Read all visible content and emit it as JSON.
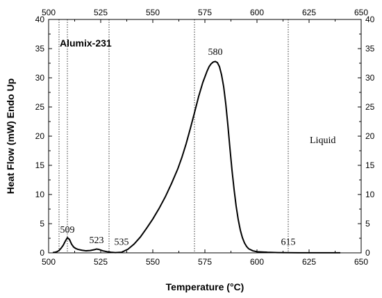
{
  "chart_data": {
    "type": "line",
    "title": "",
    "xlabel": "Temperature (°C)",
    "ylabel": "Heat Flow (mW) Endo Up",
    "xlim": [
      500,
      650
    ],
    "ylim": [
      0,
      40
    ],
    "x_ticks": [
      500,
      525,
      550,
      575,
      600,
      625,
      650
    ],
    "y_ticks": [
      0,
      5,
      10,
      15,
      20,
      25,
      30,
      35,
      40
    ],
    "grid": false,
    "legend": "none",
    "top_axis_mirrors_x": true,
    "right_axis_mirrors_y": true,
    "sample_label": "Alumix-231",
    "phase_label": "Liquid",
    "reference_lines_x": [
      505,
      509,
      529,
      570,
      615
    ],
    "annotations": [
      {
        "text": "509",
        "x": 509,
        "y": 2.5
      },
      {
        "text": "523",
        "x": 523,
        "y": 0.7
      },
      {
        "text": "535",
        "x": 535,
        "y": 0.4
      },
      {
        "text": "580",
        "x": 580,
        "y": 33
      },
      {
        "text": "615",
        "x": 615,
        "y": 0.4
      }
    ],
    "series": [
      {
        "x": [
          502,
          503,
          504,
          505,
          506,
          507,
          508,
          509,
          510,
          511,
          512,
          513,
          514,
          516,
          518,
          520,
          522,
          523,
          524,
          526,
          528,
          530,
          532,
          535,
          538,
          541,
          544,
          547,
          550,
          553,
          556,
          559,
          562,
          564,
          566,
          568,
          570,
          572,
          574,
          576,
          577,
          578,
          579,
          580,
          581,
          582,
          583,
          584,
          585,
          586,
          587,
          588,
          589,
          590,
          591,
          592,
          593,
          594,
          595,
          596,
          598,
          600,
          605,
          610,
          615,
          620,
          625,
          630,
          635,
          640
        ],
        "y": [
          0.05,
          0.1,
          0.2,
          0.4,
          0.8,
          1.3,
          2.0,
          2.6,
          2.3,
          1.5,
          1.0,
          0.75,
          0.6,
          0.45,
          0.35,
          0.4,
          0.55,
          0.65,
          0.6,
          0.35,
          0.2,
          0.1,
          0.05,
          0.1,
          0.6,
          1.5,
          2.7,
          4.2,
          5.8,
          7.6,
          9.6,
          11.9,
          14.4,
          16.4,
          18.7,
          21.3,
          24.0,
          26.8,
          29.2,
          31.1,
          31.9,
          32.4,
          32.7,
          32.8,
          32.6,
          31.9,
          30.5,
          28.5,
          25.6,
          22.0,
          18.0,
          14.2,
          10.9,
          8.0,
          5.7,
          3.9,
          2.6,
          1.7,
          1.1,
          0.7,
          0.35,
          0.2,
          0.1,
          0.05,
          0.03,
          0.02,
          0.02,
          0.02,
          0.02,
          0.02
        ]
      }
    ]
  }
}
